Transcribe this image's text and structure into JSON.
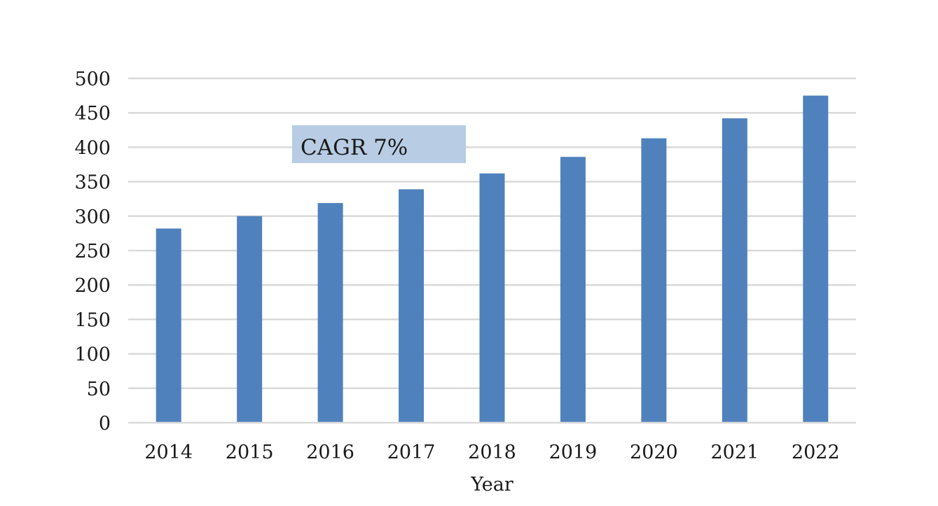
{
  "chart_data": {
    "type": "bar",
    "categories": [
      "2014",
      "2015",
      "2016",
      "2017",
      "2018",
      "2019",
      "2020",
      "2021",
      "2022"
    ],
    "values": [
      282,
      300,
      319,
      339,
      362,
      386,
      413,
      442,
      475
    ],
    "title": "",
    "xlabel": "Year",
    "ylabel": "",
    "ylim": [
      0,
      500
    ],
    "yticks": [
      0,
      50,
      100,
      150,
      200,
      250,
      300,
      350,
      400,
      450,
      500
    ],
    "grid": true,
    "legend": "none",
    "annotation": {
      "text": "CAGR 7%"
    },
    "colors": {
      "bar": "#4f81bd",
      "grid": "#d9d9d9",
      "annotation_fill": "#b8cce4"
    }
  }
}
